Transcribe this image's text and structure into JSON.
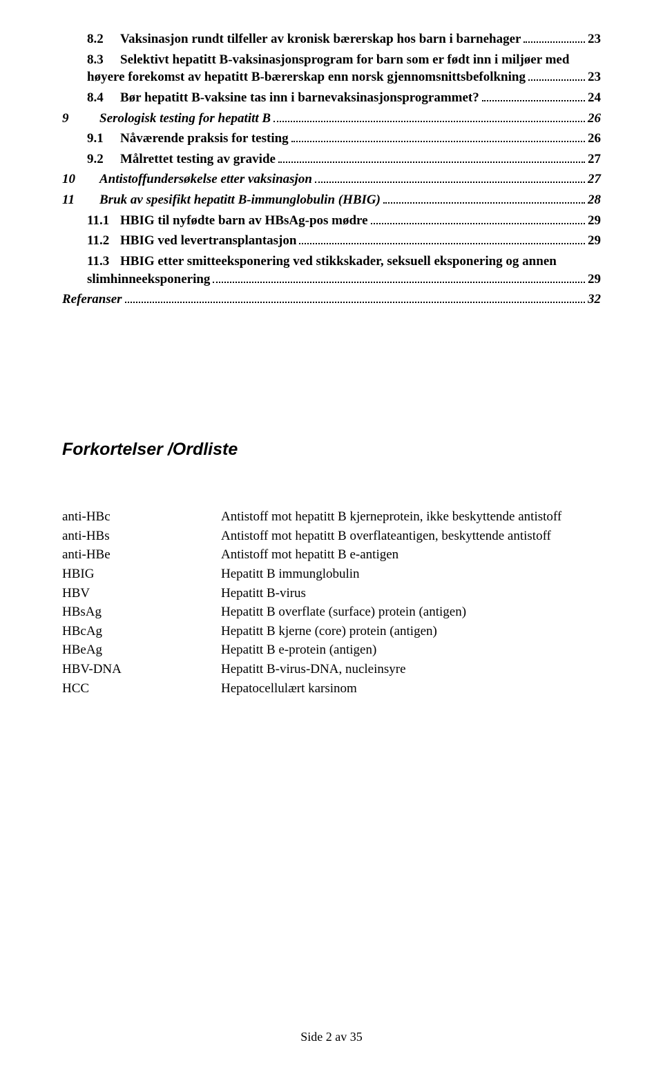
{
  "toc": [
    {
      "type": "sub",
      "num": "8.2",
      "title": "Vaksinasjon rundt tilfeller av kronisk bærerskap hos barn i barnehager",
      "page": "23"
    },
    {
      "type": "sub-multi",
      "num": "8.3",
      "line1": "Selektivt hepatitt B-vaksinasjonsprogram for barn som er født inn i miljøer med",
      "line2": "høyere forekomst av hepatitt B-bærerskap enn norsk gjennomsnittsbefolkning",
      "page": "23"
    },
    {
      "type": "sub",
      "num": "8.4",
      "title": "Bør hepatitt B-vaksine tas inn i barnevaksinasjonsprogrammet?",
      "page": "24"
    },
    {
      "type": "top-i",
      "num": "9",
      "title": "Serologisk testing for hepatitt B",
      "page": "26"
    },
    {
      "type": "sub",
      "num": "9.1",
      "title": "Nåværende praksis for testing",
      "page": "26"
    },
    {
      "type": "sub",
      "num": "9.2",
      "title": "Målrettet testing av gravide",
      "page": "27"
    },
    {
      "type": "top-i",
      "num": "10",
      "title": "Antistoffundersøkelse etter vaksinasjon",
      "page": "27"
    },
    {
      "type": "top-i",
      "num": "11",
      "title": "Bruk av spesifikt hepatitt B-immunglobulin (HBIG)",
      "page": "28"
    },
    {
      "type": "sub",
      "num": "11.1",
      "title": "HBIG til nyfødte barn av HBsAg-pos mødre",
      "page": "29"
    },
    {
      "type": "sub",
      "num": "11.2",
      "title": "HBIG ved levertransplantasjon",
      "page": "29"
    },
    {
      "type": "sub-multi",
      "num": "11.3",
      "line1": "HBIG etter smitteeksponering ved stikkskader, seksuell eksponering og annen",
      "line2": "slimhinneeksponering",
      "page": "29"
    },
    {
      "type": "top-i-noNum",
      "title": "Referanser",
      "page": "32"
    }
  ],
  "glossaryHeading": "Forkortelser /Ordliste",
  "glossary": [
    {
      "term": "anti-HBc",
      "def": "Antistoff mot hepatitt B kjerneprotein, ikke beskyttende antistoff"
    },
    {
      "term": "anti-HBs",
      "def": "Antistoff mot hepatitt B overflateantigen, beskyttende antistoff"
    },
    {
      "term": "anti-HBe",
      "def": "Antistoff mot hepatitt B e-antigen"
    },
    {
      "term": "HBIG",
      "def": "Hepatitt B immunglobulin"
    },
    {
      "term": "HBV",
      "def": "Hepatitt B-virus"
    },
    {
      "term": "HBsAg",
      "def": "Hepatitt B overflate (surface) protein (antigen)"
    },
    {
      "term": "HBcAg",
      "def": "Hepatitt B kjerne (core) protein (antigen)"
    },
    {
      "term": "HBeAg",
      "def": "Hepatitt B e-protein (antigen)"
    },
    {
      "term": "HBV-DNA",
      "def": "Hepatitt B-virus-DNA, nucleinsyre"
    },
    {
      "term": "HCC",
      "def": "Hepatocellulært karsinom"
    }
  ],
  "footer": "Side 2 av 35"
}
